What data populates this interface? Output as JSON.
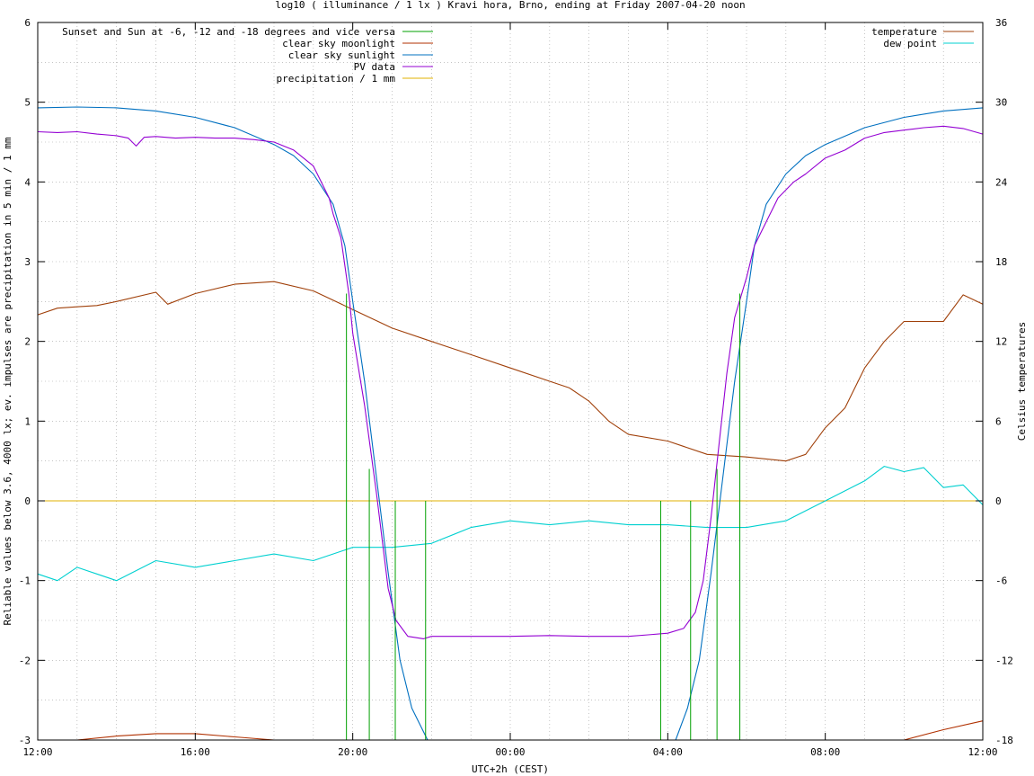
{
  "chart_data": {
    "type": "line",
    "title": "log10 ( illuminance / 1 lx ) Kravi hora, Brno, ending at Friday 2007-04-20 noon",
    "xlabel": "UTC+2h (CEST)",
    "ylabel": "Reliable values below 3.6, 4000 lx; ev. impulses are precipitation in 5 min / 1 mm",
    "y2label": "Celsius temperatures",
    "xlim_hours": [
      0,
      24
    ],
    "ylim": [
      -3,
      6
    ],
    "y2lim": [
      -18,
      36
    ],
    "grid": true,
    "x_ticks": [
      {
        "h": 0,
        "label": "12:00"
      },
      {
        "h": 4,
        "label": "16:00"
      },
      {
        "h": 8,
        "label": "20:00"
      },
      {
        "h": 12,
        "label": "00:00"
      },
      {
        "h": 16,
        "label": "04:00"
      },
      {
        "h": 20,
        "label": "08:00"
      },
      {
        "h": 24,
        "label": "12:00"
      }
    ],
    "y_ticks": [
      {
        "v": -3,
        "label": "-3"
      },
      {
        "v": -2,
        "label": "-2"
      },
      {
        "v": -1,
        "label": "-1"
      },
      {
        "v": 0,
        "label": "0"
      },
      {
        "v": 1,
        "label": "1"
      },
      {
        "v": 2,
        "label": "2"
      },
      {
        "v": 3,
        "label": "3"
      },
      {
        "v": 4,
        "label": "4"
      },
      {
        "v": 5,
        "label": "5"
      },
      {
        "v": 6,
        "label": "6"
      }
    ],
    "y2_ticks": [
      {
        "v": -18,
        "label": "-18"
      },
      {
        "v": -12,
        "label": "-12"
      },
      {
        "v": -6,
        "label": "-6"
      },
      {
        "v": 0,
        "label": "0"
      },
      {
        "v": 6,
        "label": "6"
      },
      {
        "v": 12,
        "label": "12"
      },
      {
        "v": 18,
        "label": "18"
      },
      {
        "v": 24,
        "label": "24"
      },
      {
        "v": 30,
        "label": "30"
      },
      {
        "v": 36,
        "label": "36"
      }
    ],
    "legend_left": [
      {
        "label": "Sunset and Sun at -6, -12 and -18 degrees and vice versa",
        "color": "#00a000"
      },
      {
        "label": "clear sky moonlight",
        "color": "#b03000"
      },
      {
        "label": "clear sky sunlight",
        "color": "#0070c0"
      },
      {
        "label": "PV data",
        "color": "#9400d3"
      },
      {
        "label": "precipitation / 1 mm",
        "color": "#e0b000"
      }
    ],
    "legend_right": [
      {
        "label": "temperature",
        "color": "#a0400a"
      },
      {
        "label": "dew point",
        "color": "#00d0d0"
      }
    ],
    "sun_events": [
      {
        "h": 7.84,
        "top": 2.6
      },
      {
        "h": 8.42,
        "top": 0.4
      },
      {
        "h": 9.08,
        "top": 0
      },
      {
        "h": 9.85,
        "top": 0
      },
      {
        "h": 15.82,
        "top": 0
      },
      {
        "h": 16.58,
        "top": 0
      },
      {
        "h": 17.25,
        "top": 0.4
      },
      {
        "h": 17.83,
        "top": 2.6
      }
    ],
    "series": [
      {
        "name": "clear sky sunlight",
        "axis": "y",
        "color": "#0070c0",
        "points": [
          [
            0,
            4.93
          ],
          [
            1,
            4.94
          ],
          [
            2,
            4.93
          ],
          [
            3,
            4.89
          ],
          [
            4,
            4.81
          ],
          [
            5,
            4.68
          ],
          [
            6,
            4.47
          ],
          [
            6.5,
            4.33
          ],
          [
            7,
            4.1
          ],
          [
            7.5,
            3.72
          ],
          [
            7.8,
            3.2
          ],
          [
            8,
            2.5
          ],
          [
            8.3,
            1.5
          ],
          [
            8.6,
            0.3
          ],
          [
            8.9,
            -0.9
          ],
          [
            9.2,
            -2.0
          ],
          [
            9.5,
            -2.6
          ],
          [
            9.9,
            -3.0
          ],
          [
            16.2,
            -3.0
          ],
          [
            16.5,
            -2.6
          ],
          [
            16.8,
            -2.0
          ],
          [
            17.1,
            -0.9
          ],
          [
            17.4,
            0.3
          ],
          [
            17.7,
            1.5
          ],
          [
            18,
            2.5
          ],
          [
            18.2,
            3.2
          ],
          [
            18.5,
            3.72
          ],
          [
            19,
            4.1
          ],
          [
            19.5,
            4.33
          ],
          [
            20,
            4.47
          ],
          [
            21,
            4.68
          ],
          [
            22,
            4.81
          ],
          [
            23,
            4.89
          ],
          [
            24,
            4.93
          ]
        ]
      },
      {
        "name": "PV data",
        "axis": "y",
        "color": "#9400d3",
        "points": [
          [
            0,
            4.63
          ],
          [
            0.5,
            4.62
          ],
          [
            1,
            4.63
          ],
          [
            1.5,
            4.6
          ],
          [
            2,
            4.58
          ],
          [
            2.3,
            4.55
          ],
          [
            2.5,
            4.45
          ],
          [
            2.7,
            4.56
          ],
          [
            3,
            4.57
          ],
          [
            3.5,
            4.55
          ],
          [
            4,
            4.56
          ],
          [
            4.5,
            4.55
          ],
          [
            5,
            4.55
          ],
          [
            5.5,
            4.53
          ],
          [
            6,
            4.5
          ],
          [
            6.5,
            4.4
          ],
          [
            7,
            4.2
          ],
          [
            7.4,
            3.8
          ],
          [
            7.5,
            3.6
          ],
          [
            7.7,
            3.3
          ],
          [
            7.9,
            2.6
          ],
          [
            8,
            2.1
          ],
          [
            8.3,
            1.2
          ],
          [
            8.6,
            0.1
          ],
          [
            8.9,
            -1.1
          ],
          [
            9.1,
            -1.5
          ],
          [
            9.4,
            -1.7
          ],
          [
            9.8,
            -1.73
          ],
          [
            10,
            -1.7
          ],
          [
            11,
            -1.7
          ],
          [
            12,
            -1.7
          ],
          [
            13,
            -1.69
          ],
          [
            14,
            -1.7
          ],
          [
            15,
            -1.7
          ],
          [
            15.5,
            -1.68
          ],
          [
            16,
            -1.66
          ],
          [
            16.4,
            -1.6
          ],
          [
            16.7,
            -1.4
          ],
          [
            16.9,
            -1.0
          ],
          [
            17.1,
            -0.2
          ],
          [
            17.3,
            0.7
          ],
          [
            17.5,
            1.6
          ],
          [
            17.7,
            2.3
          ],
          [
            18,
            2.8
          ],
          [
            18.2,
            3.2
          ],
          [
            18.5,
            3.5
          ],
          [
            18.8,
            3.8
          ],
          [
            19,
            3.9
          ],
          [
            19.2,
            4.0
          ],
          [
            19.5,
            4.1
          ],
          [
            20,
            4.3
          ],
          [
            20.5,
            4.4
          ],
          [
            21,
            4.55
          ],
          [
            21.5,
            4.62
          ],
          [
            22,
            4.65
          ],
          [
            22.5,
            4.68
          ],
          [
            23,
            4.7
          ],
          [
            23.5,
            4.67
          ],
          [
            24,
            4.6
          ]
        ]
      },
      {
        "name": "clear sky moonlight",
        "axis": "y",
        "color": "#b03000",
        "points": [
          [
            0,
            -3.1
          ],
          [
            1,
            -3.0
          ],
          [
            2,
            -2.95
          ],
          [
            3,
            -2.92
          ],
          [
            4,
            -2.92
          ],
          [
            5,
            -2.96
          ],
          [
            6,
            -3.05
          ],
          [
            21.5,
            -3.05
          ],
          [
            22,
            -3.0
          ],
          [
            23,
            -2.87
          ],
          [
            24,
            -2.76
          ]
        ]
      },
      {
        "name": "temperature",
        "axis": "y2",
        "color": "#a0400a",
        "points": [
          [
            0,
            14.0
          ],
          [
            0.5,
            14.5
          ],
          [
            1,
            14.6
          ],
          [
            1.5,
            14.7
          ],
          [
            2,
            15.0
          ],
          [
            3,
            15.7
          ],
          [
            3.3,
            14.8
          ],
          [
            4,
            15.6
          ],
          [
            5,
            16.3
          ],
          [
            6,
            16.5
          ],
          [
            7,
            15.8
          ],
          [
            8,
            14.4
          ],
          [
            9,
            13.0
          ],
          [
            10,
            12.0
          ],
          [
            11,
            11.0
          ],
          [
            12,
            10.0
          ],
          [
            13,
            9.0
          ],
          [
            13.5,
            8.5
          ],
          [
            14,
            7.5
          ],
          [
            14.5,
            6.0
          ],
          [
            15,
            5.0
          ],
          [
            16,
            4.5
          ],
          [
            17,
            3.5
          ],
          [
            18,
            3.3
          ],
          [
            19,
            3.0
          ],
          [
            19.5,
            3.5
          ],
          [
            20,
            5.5
          ],
          [
            20.5,
            7.0
          ],
          [
            21,
            10.0
          ],
          [
            21.5,
            12.0
          ],
          [
            22,
            13.5
          ],
          [
            22.5,
            13.5
          ],
          [
            23,
            13.5
          ],
          [
            23.5,
            15.5
          ],
          [
            24,
            14.8
          ]
        ]
      },
      {
        "name": "dew point",
        "axis": "y2",
        "color": "#00d0d0",
        "points": [
          [
            0,
            -5.5
          ],
          [
            0.5,
            -6.0
          ],
          [
            1,
            -5.0
          ],
          [
            1.5,
            -5.5
          ],
          [
            2,
            -6.0
          ],
          [
            3,
            -4.5
          ],
          [
            4,
            -5.0
          ],
          [
            5,
            -4.5
          ],
          [
            6,
            -4.0
          ],
          [
            7,
            -4.5
          ],
          [
            8,
            -3.5
          ],
          [
            9,
            -3.5
          ],
          [
            10,
            -3.2
          ],
          [
            11,
            -2.0
          ],
          [
            12,
            -1.5
          ],
          [
            13,
            -1.8
          ],
          [
            14,
            -1.5
          ],
          [
            15,
            -1.8
          ],
          [
            16,
            -1.8
          ],
          [
            17,
            -2.0
          ],
          [
            18,
            -2.0
          ],
          [
            19,
            -1.5
          ],
          [
            20,
            0.0
          ],
          [
            21,
            1.5
          ],
          [
            21.5,
            2.6
          ],
          [
            22,
            2.2
          ],
          [
            22.5,
            2.5
          ],
          [
            23,
            1.0
          ],
          [
            23.5,
            1.2
          ],
          [
            24,
            -0.3
          ]
        ]
      },
      {
        "name": "precipitation / 1 mm",
        "axis": "y",
        "color": "#e0b000",
        "points": [
          [
            0,
            0
          ],
          [
            24,
            0
          ]
        ]
      }
    ]
  }
}
